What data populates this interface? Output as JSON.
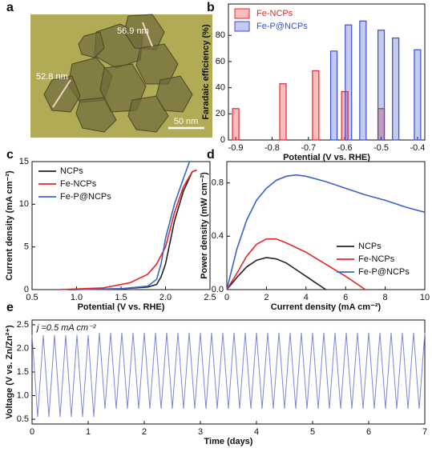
{
  "chart_data": [
    {
      "type": "image",
      "label": "a",
      "annotations": [
        "56.9 nm",
        "52.8 nm"
      ],
      "scale_bar": "50 nm"
    },
    {
      "type": "bar",
      "label": "b",
      "x_label": "Potential (V vs. RHE)",
      "y_label": "Faradaic efficiency (%)",
      "xlim": [
        -0.92,
        -0.38
      ],
      "xticks": [
        -0.9,
        -0.8,
        -0.7,
        -0.6,
        -0.5,
        -0.4
      ],
      "ylim": [
        0,
        104
      ],
      "yticks": [
        0,
        20,
        40,
        60,
        80
      ],
      "legend": "upper left",
      "series": [
        {
          "name": "Fe-NCPs",
          "color": "#e8242a",
          "x": [
            -0.9,
            -0.77,
            -0.68,
            -0.6,
            -0.5
          ],
          "values": [
            24,
            43,
            53,
            37,
            24
          ]
        },
        {
          "name": "Fe-P@NCPs",
          "color": "#3a4fc8",
          "x": [
            -0.63,
            -0.59,
            -0.55,
            -0.5,
            -0.46,
            -0.4
          ],
          "values": [
            68,
            88,
            91,
            84,
            78,
            69
          ]
        }
      ]
    },
    {
      "type": "line",
      "label": "c",
      "x_label": "Potential (V vs. RHE)",
      "y_label": "Current density (mA cm⁻²)",
      "xlim": [
        0.5,
        2.5
      ],
      "xticks": [
        0.5,
        {
          "value": 1,
          "label": "1.0"
        },
        1.5,
        {
          "value": 2,
          "label": "2.0"
        },
        2.5
      ],
      "ylim": [
        0,
        15
      ],
      "yticks": [
        0,
        5,
        10,
        15
      ],
      "legend": "upper left",
      "series": [
        {
          "name": "NCPs",
          "color": "#222222",
          "x": [
            0.9,
            1.5,
            1.8,
            1.9,
            1.95,
            2.0,
            2.05,
            2.1,
            2.2,
            2.3,
            2.35
          ],
          "values": [
            0,
            0.1,
            0.3,
            0.6,
            1.5,
            3,
            5.5,
            8,
            11.5,
            13.8,
            14
          ]
        },
        {
          "name": "Fe-NCPs",
          "color": "#e8242a",
          "x": [
            0.8,
            1.3,
            1.6,
            1.8,
            1.9,
            2.0,
            2.05,
            2.1,
            2.2,
            2.3,
            2.35
          ],
          "values": [
            0,
            0.2,
            0.8,
            1.8,
            3,
            5,
            7,
            9,
            12,
            13.8,
            14
          ]
        },
        {
          "name": "Fe-P@NCPs",
          "color": "#3a64c8",
          "x": [
            1.0,
            1.5,
            1.8,
            1.9,
            1.95,
            2.0,
            2.05,
            2.1,
            2.2,
            2.27
          ],
          "values": [
            0,
            0.1,
            0.4,
            1.2,
            3,
            6,
            8,
            10,
            13,
            15
          ]
        }
      ]
    },
    {
      "type": "line",
      "label": "d",
      "x_label": "Current density (mA cm⁻²)",
      "y_label": "Power density (mW cm⁻²)",
      "xlim": [
        0,
        10
      ],
      "xticks": [
        0,
        2,
        4,
        6,
        8,
        10
      ],
      "ylim": [
        0,
        0.96
      ],
      "yticks": [
        {
          "value": 0,
          "label": "0.0"
        },
        0.4,
        0.8
      ],
      "legend": "lower right",
      "series": [
        {
          "name": "NCPs",
          "color": "#222222",
          "x": [
            0,
            0.5,
            1,
            1.5,
            2,
            2.5,
            3,
            3.5,
            4,
            4.5,
            5
          ],
          "values": [
            0,
            0.09,
            0.17,
            0.22,
            0.24,
            0.23,
            0.2,
            0.15,
            0.1,
            0.05,
            0
          ]
        },
        {
          "name": "Fe-NCPs",
          "color": "#e8242a",
          "x": [
            0,
            0.5,
            1,
            1.5,
            2,
            2.5,
            3,
            4,
            5,
            6,
            7
          ],
          "values": [
            0,
            0.12,
            0.25,
            0.34,
            0.38,
            0.38,
            0.35,
            0.28,
            0.19,
            0.1,
            0
          ]
        },
        {
          "name": "Fe-P@NCPs",
          "color": "#3a64c8",
          "x": [
            0,
            0.5,
            1,
            1.5,
            2,
            2.5,
            3,
            3.5,
            4,
            5,
            6,
            7,
            8,
            9,
            10
          ],
          "values": [
            0,
            0.3,
            0.52,
            0.67,
            0.76,
            0.82,
            0.85,
            0.86,
            0.85,
            0.81,
            0.76,
            0.71,
            0.67,
            0.62,
            0.58
          ]
        }
      ]
    },
    {
      "type": "line",
      "label": "e",
      "x_label": "Time (days)",
      "y_label": "Voltage (V vs. Zn/Zn²⁺)",
      "annotation": "j =0.5 mA cm⁻²",
      "xlim": [
        0,
        7
      ],
      "xticks": [
        0,
        1,
        2,
        3,
        4,
        5,
        6,
        7
      ],
      "ylim": [
        0.4,
        2.6
      ],
      "yticks": [
        0.5,
        {
          "value": 1,
          "label": "1.0"
        },
        1.5,
        {
          "value": 2,
          "label": "2.0"
        },
        2.5
      ],
      "series": [
        {
          "color": "#7d87d6",
          "x": [
            0,
            0.1,
            0.2,
            0.3,
            0.4,
            0.5,
            0.6,
            0.7,
            0.8,
            0.9,
            1,
            1.1,
            1.2,
            1.3,
            1.4,
            1.5,
            1.6,
            1.7,
            1.8,
            1.9,
            2,
            2.1,
            2.2,
            2.3,
            2.4,
            2.5,
            2.6,
            2.7,
            2.8,
            2.9,
            3,
            3.1,
            3.2,
            3.3,
            3.4,
            3.5,
            3.6,
            3.7,
            3.8,
            3.9,
            4,
            4.1,
            4.2,
            4.3,
            4.4,
            4.5,
            4.6,
            4.7,
            4.8,
            4.9,
            5,
            5.1,
            5.2,
            5.3,
            5.4,
            5.5,
            5.6,
            5.7,
            5.8,
            5.9,
            6,
            6.1,
            6.2,
            6.3,
            6.4,
            6.5,
            6.6,
            6.7,
            6.8,
            6.9,
            7
          ],
          "values": [
            2.28,
            0.55,
            2.28,
            0.55,
            2.28,
            0.55,
            2.28,
            0.55,
            2.28,
            0.55,
            2.28,
            0.55,
            2.33,
            0.72,
            2.33,
            0.72,
            2.33,
            0.72,
            2.33,
            0.72,
            2.33,
            0.72,
            2.33,
            0.72,
            2.33,
            0.72,
            2.33,
            0.72,
            2.33,
            0.72,
            2.33,
            0.72,
            2.33,
            0.72,
            2.33,
            0.72,
            2.33,
            0.72,
            2.33,
            0.72,
            2.33,
            0.72,
            2.33,
            0.72,
            2.33,
            0.72,
            2.33,
            0.72,
            2.33,
            0.72,
            2.33,
            0.72,
            2.33,
            0.72,
            2.33,
            0.72,
            2.33,
            0.72,
            2.33,
            0.72,
            2.33,
            0.72,
            2.33,
            0.72,
            2.33,
            0.72,
            2.33,
            0.72,
            2.33,
            0.72,
            2.33
          ]
        }
      ]
    }
  ]
}
